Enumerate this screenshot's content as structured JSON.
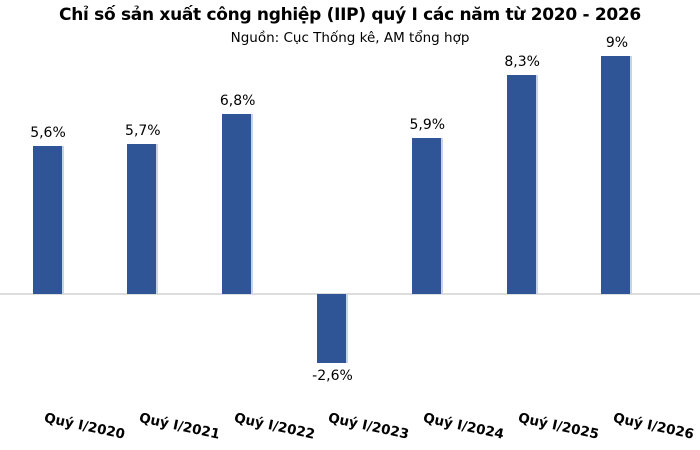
{
  "chart_data": {
    "type": "bar",
    "title": "Chỉ số sản xuất công nghiệp (IIP) quý I các năm từ 2020 - 2026",
    "subtitle": "Nguồn: Cục Thống kê, AM tổng hợp",
    "categories": [
      "Quý I/2020",
      "Quý I/2021",
      "Quý I/2022",
      "Quý I/2023",
      "Quý I/2024",
      "Quý I/2025",
      "Quý I/2026"
    ],
    "values": [
      5.6,
      5.7,
      6.8,
      -2.6,
      5.9,
      8.3,
      9
    ],
    "value_labels": [
      "5,6%",
      "5,7%",
      "6,8%",
      "-2,6%",
      "5,9%",
      "8,3%",
      "9%"
    ],
    "unit": "%",
    "xlabel": "",
    "ylabel": "",
    "ylim": [
      -4,
      10
    ],
    "grid": false,
    "legend": "none",
    "bar_color": "#2F5597",
    "bar_edge_color": "#C6D3E8",
    "axis_line_color": "#DDDDDD",
    "label_rotation_deg": 12
  }
}
